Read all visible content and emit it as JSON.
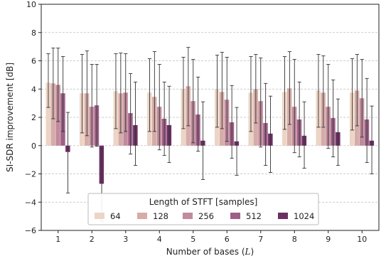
{
  "chart_data": {
    "type": "bar",
    "xlabel": "Number of bases (",
    "xlabel_var": "L",
    "xlabel_end": ")",
    "ylabel": "SI-SDR improvement [dB]",
    "ylim": [
      -6,
      10
    ],
    "yticks": [
      -6,
      -4,
      -2,
      0,
      2,
      4,
      6,
      8,
      10
    ],
    "ytick_labels": [
      "−6",
      "−4",
      "−2",
      "0",
      "2",
      "4",
      "6",
      "8",
      "10"
    ],
    "grid": "horizontal dashed",
    "legend_placement": "lower-center",
    "legend_title": "Length of STFT [samples]",
    "categories": [
      "1",
      "2",
      "3",
      "4",
      "5",
      "6",
      "7",
      "8",
      "9",
      "10"
    ],
    "series": [
      {
        "name": "64",
        "color": "#ecd5c6",
        "values": [
          4.45,
          3.7,
          3.85,
          3.75,
          4.0,
          4.0,
          3.75,
          3.8,
          3.9,
          3.75
        ],
        "err_high": [
          6.5,
          6.45,
          6.5,
          6.15,
          6.25,
          6.4,
          6.3,
          6.3,
          6.45,
          6.15
        ],
        "err_low": [
          2.7,
          0.9,
          1.2,
          1.0,
          1.2,
          1.3,
          1.0,
          1.15,
          1.3,
          1.1
        ]
      },
      {
        "name": "128",
        "color": "#d6aca8",
        "values": [
          4.4,
          3.7,
          3.7,
          3.45,
          4.2,
          3.8,
          4.0,
          4.05,
          3.75,
          3.9
        ],
        "err_high": [
          6.9,
          6.7,
          6.55,
          6.65,
          6.95,
          6.6,
          6.45,
          6.65,
          6.35,
          6.45
        ],
        "err_low": [
          1.9,
          0.7,
          0.9,
          1.0,
          1.4,
          1.2,
          1.6,
          1.5,
          1.3,
          1.4
        ]
      },
      {
        "name": "256",
        "color": "#c08b9c",
        "values": [
          4.3,
          2.75,
          3.75,
          2.75,
          3.15,
          3.25,
          3.15,
          2.75,
          2.75,
          3.35
        ],
        "err_high": [
          6.9,
          5.75,
          6.5,
          5.75,
          6.1,
          6.25,
          6.2,
          6.1,
          5.75,
          6.1
        ],
        "err_low": [
          1.7,
          -0.1,
          1.0,
          -0.3,
          0.2,
          0.3,
          -0.1,
          -0.5,
          -0.2,
          0.6
        ]
      },
      {
        "name": "512",
        "color": "#9e5f86",
        "values": [
          3.7,
          2.85,
          2.3,
          1.9,
          2.2,
          1.65,
          1.6,
          1.85,
          1.95,
          1.85
        ],
        "err_high": [
          6.3,
          5.75,
          5.1,
          4.5,
          4.85,
          4.25,
          4.4,
          4.5,
          4.65,
          4.75
        ],
        "err_low": [
          1.0,
          -0.05,
          -0.6,
          -0.7,
          -0.4,
          -0.9,
          -1.4,
          -0.8,
          -0.8,
          -1.2
        ]
      },
      {
        "name": "1024",
        "color": "#6b2f62",
        "values": [
          -0.45,
          -2.7,
          1.45,
          1.45,
          0.35,
          0.3,
          0.85,
          0.7,
          0.95,
          0.35
        ],
        "err_high": [
          2.35,
          -0.2,
          4.5,
          4.2,
          3.1,
          2.7,
          3.5,
          3.1,
          3.3,
          2.8
        ],
        "err_low": [
          -3.35,
          -5.35,
          -1.4,
          -1.2,
          -2.4,
          -2.1,
          -1.9,
          -1.6,
          -1.4,
          -2.0
        ]
      }
    ]
  }
}
